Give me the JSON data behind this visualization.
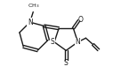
{
  "bg_color": "#ffffff",
  "line_color": "#1a1a1a",
  "line_width": 1.0,
  "text_color": "#1a1a1a",
  "font_size_atom": 5.5,
  "font_size_me": 4.5,
  "xlim": [
    0.0,
    1.1
  ],
  "ylim": [
    0.05,
    0.95
  ]
}
